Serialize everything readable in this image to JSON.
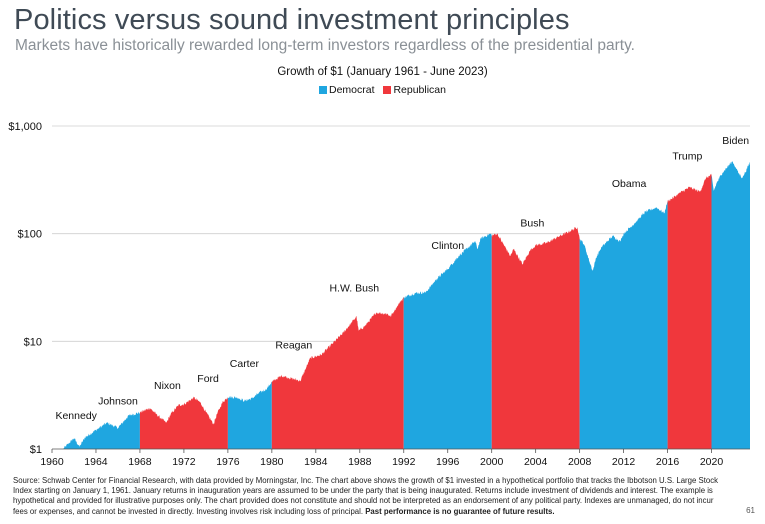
{
  "header": {
    "title": "Politics versus sound investment principles",
    "subtitle": "Markets have historically rewarded long-term investors regardless of the presidential party."
  },
  "colors": {
    "democrat": "#1fa6e0",
    "republican": "#f0373c"
  },
  "footnote": {
    "text": "Source: Schwab Center for Financial Research, with data provided by Morningstar, Inc. The chart above shows the growth of $1 invested in a hypothetical portfolio that tracks the Ibbotson U.S. Large Stock Index starting on January 1, 1961. January returns in inauguration years are assumed to be under the party that is being inaugurated. Returns include investment of dividends and interest. The example is hypothetical and provided for illustrative purposes only. The chart provided does not constitute and should not be interpreted as an endorsement of any political party. Indexes are unmanaged, do not incur fees or expenses, and cannot be invested in directly. Investing involves risk including loss of principal.",
    "bold": "Past performance is no guarantee of future results."
  },
  "page_number": "61",
  "chart_data": {
    "type": "area",
    "title": "Growth of $1 (January 1961 - June 2023)",
    "legend": [
      "Democrat",
      "Republican"
    ],
    "legend_position": "top-center",
    "yscale": "log",
    "ylim": [
      1,
      1000
    ],
    "yticks": [
      1,
      10,
      100,
      1000
    ],
    "ytick_labels": [
      "$1",
      "$10",
      "$100",
      "$1,000"
    ],
    "xlim": [
      1960,
      2023.5
    ],
    "xticks": [
      1960,
      1964,
      1968,
      1972,
      1976,
      1980,
      1984,
      1988,
      1992,
      1996,
      2000,
      2004,
      2008,
      2012,
      2016,
      2020
    ],
    "grid": "horizontal",
    "terms": [
      {
        "president": "Kennedy",
        "party": "Democrat",
        "start": 1961,
        "end": 1968
      },
      {
        "president": "Johnson",
        "party": "Democrat",
        "start": 1961,
        "end": 1968
      },
      {
        "president": "Nixon",
        "party": "Republican",
        "start": 1968,
        "end": 1976
      },
      {
        "president": "Ford",
        "party": "Republican",
        "start": 1968,
        "end": 1976
      },
      {
        "president": "Carter",
        "party": "Democrat",
        "start": 1976,
        "end": 1980
      },
      {
        "president": "Reagan",
        "party": "Republican",
        "start": 1980,
        "end": 1992
      },
      {
        "president": "H.W. Bush",
        "party": "Republican",
        "start": 1980,
        "end": 1992
      },
      {
        "president": "Clinton",
        "party": "Democrat",
        "start": 1992,
        "end": 2000
      },
      {
        "president": "Bush",
        "party": "Republican",
        "start": 2000,
        "end": 2008
      },
      {
        "president": "Obama",
        "party": "Democrat",
        "start": 2008,
        "end": 2016
      },
      {
        "president": "Trump",
        "party": "Republican",
        "start": 2016,
        "end": 2020
      },
      {
        "president": "Biden",
        "party": "Democrat",
        "start": 2020,
        "end": 2023.5
      }
    ],
    "president_labels": [
      {
        "name": "Kennedy",
        "x": 1962.2,
        "y": 1.9
      },
      {
        "name": "Johnson",
        "x": 1966.0,
        "y": 2.6
      },
      {
        "name": "Nixon",
        "x": 1970.5,
        "y": 3.6
      },
      {
        "name": "Ford",
        "x": 1974.2,
        "y": 4.2
      },
      {
        "name": "Carter",
        "x": 1977.5,
        "y": 5.8
      },
      {
        "name": "Reagan",
        "x": 1982.0,
        "y": 8.6
      },
      {
        "name": "H.W. Bush",
        "x": 1987.5,
        "y": 29.0
      },
      {
        "name": "Clinton",
        "x": 1996.0,
        "y": 72.0
      },
      {
        "name": "Bush",
        "x": 2003.7,
        "y": 117.0
      },
      {
        "name": "Obama",
        "x": 2012.5,
        "y": 270.0
      },
      {
        "name": "Trump",
        "x": 2017.8,
        "y": 490.0
      },
      {
        "name": "Biden",
        "x": 2022.2,
        "y": 680.0
      }
    ],
    "x": [
      1961.0,
      1962.0,
      1962.5,
      1963.0,
      1964.0,
      1965.0,
      1966.0,
      1966.8,
      1967.0,
      1968.0,
      1968.9,
      1969.5,
      1970.4,
      1970.8,
      1971.5,
      1972.0,
      1972.9,
      1973.5,
      1974.0,
      1974.7,
      1975.0,
      1975.5,
      1976.0,
      1976.9,
      1977.5,
      1978.2,
      1978.8,
      1979.5,
      1980.0,
      1980.9,
      1981.5,
      1982.6,
      1983.5,
      1984.5,
      1985.5,
      1986.5,
      1987.7,
      1987.9,
      1988.5,
      1989.5,
      1990.5,
      1990.8,
      1991.5,
      1992.0,
      1993.0,
      1994.0,
      1995.0,
      1996.0,
      1997.0,
      1998.5,
      1998.7,
      1999.0,
      1999.9,
      2000.0,
      2000.5,
      2001.0,
      2001.7,
      2002.0,
      2002.8,
      2003.5,
      2004.0,
      2005.0,
      2006.0,
      2007.0,
      2007.8,
      2008.0,
      2008.4,
      2008.9,
      2009.2,
      2009.5,
      2010.0,
      2011.0,
      2011.7,
      2012.0,
      2013.0,
      2014.0,
      2015.0,
      2015.7,
      2016.0,
      2016.5,
      2017.0,
      2018.0,
      2018.95,
      2019.5,
      2020.0,
      2020.2,
      2020.5,
      2021.0,
      2021.9,
      2022.5,
      2022.8,
      2023.0,
      2023.5
    ],
    "y": [
      1.0,
      1.26,
      1.05,
      1.28,
      1.5,
      1.75,
      1.57,
      1.95,
      2.05,
      2.18,
      2.4,
      2.1,
      1.75,
      2.1,
      2.55,
      2.6,
      3.0,
      2.7,
      2.2,
      1.7,
      2.1,
      2.7,
      3.05,
      3.0,
      2.8,
      2.95,
      3.3,
      3.6,
      4.2,
      4.8,
      4.6,
      4.3,
      7.0,
      7.5,
      9.5,
      12.0,
      17.0,
      12.5,
      14.0,
      18.5,
      18.0,
      17.0,
      22.0,
      25.5,
      28.0,
      28.5,
      38.0,
      47.0,
      62.0,
      85.0,
      72.0,
      90.0,
      100.0,
      96.0,
      100.0,
      82.0,
      62.0,
      72.0,
      52.0,
      70.0,
      78.0,
      82.0,
      93.0,
      104.0,
      115.0,
      90.0,
      80.0,
      55.0,
      45.0,
      60.0,
      75.0,
      95.0,
      85.0,
      100.0,
      125.0,
      160.0,
      175.0,
      155.0,
      200.0,
      215.0,
      235.0,
      270.0,
      245.0,
      330.0,
      350.0,
      250.0,
      300.0,
      370.0,
      470.0,
      360.0,
      330.0,
      360.0,
      460.0
    ]
  }
}
